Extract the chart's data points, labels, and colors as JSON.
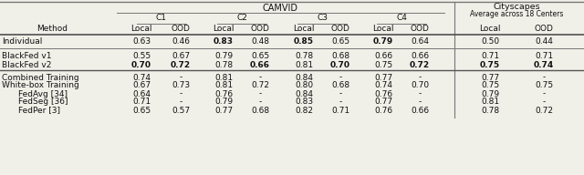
{
  "bg_color": "#f0efe8",
  "line_color": "#777777",
  "text_color": "#111111",
  "fontsize": 6.5,
  "title_camvid": "CAMVID",
  "title_city": "Cityscapes",
  "title_city2": "Average across 18 Centers",
  "col_groups": [
    "C1",
    "C2",
    "C3",
    "C4"
  ],
  "rows": [
    {
      "method": "Individual",
      "values": [
        "0.63",
        "0.46",
        "0.83",
        "0.48",
        "0.85",
        "0.65",
        "0.79",
        "0.64",
        "0.50",
        "0.44"
      ],
      "bold": [
        false,
        false,
        true,
        false,
        true,
        false,
        true,
        false,
        false,
        false
      ],
      "group": "individual"
    },
    {
      "method": "BlackFed v1",
      "values": [
        "0.55",
        "0.67",
        "0.79",
        "0.65",
        "0.78",
        "0.68",
        "0.66",
        "0.66",
        "0.71",
        "0.71"
      ],
      "bold": [
        false,
        false,
        false,
        false,
        false,
        false,
        false,
        false,
        false,
        false
      ],
      "group": "blackfed"
    },
    {
      "method": "BlackFed v2",
      "values": [
        "0.70",
        "0.72",
        "0.78",
        "0.66",
        "0.81",
        "0.70",
        "0.75",
        "0.72",
        "0.75",
        "0.74"
      ],
      "bold": [
        true,
        true,
        false,
        true,
        false,
        true,
        false,
        true,
        true,
        true
      ],
      "group": "blackfed"
    },
    {
      "method": "Combined Training",
      "values": [
        "0.74",
        "-",
        "0.81",
        "-",
        "0.84",
        "-",
        "0.77",
        "-",
        "0.77",
        "-"
      ],
      "bold": [
        false,
        false,
        false,
        false,
        false,
        false,
        false,
        false,
        false,
        false
      ],
      "group": "baseline"
    },
    {
      "method": "White-box Training",
      "values": [
        "0.67",
        "0.73",
        "0.81",
        "0.72",
        "0.80",
        "0.68",
        "0.74",
        "0.70",
        "0.75",
        "0.75"
      ],
      "bold": [
        false,
        false,
        false,
        false,
        false,
        false,
        false,
        false,
        false,
        false
      ],
      "group": "baseline"
    },
    {
      "method": "FedAvg [34]",
      "values": [
        "0.64",
        "-",
        "0.76",
        "-",
        "0.84",
        "-",
        "0.76",
        "-",
        "0.79",
        "-"
      ],
      "bold": [
        false,
        false,
        false,
        false,
        false,
        false,
        false,
        false,
        false,
        false
      ],
      "group": "baseline_indent"
    },
    {
      "method": "FedSeg [36]",
      "values": [
        "0.71",
        "-",
        "0.79",
        "-",
        "0.83",
        "-",
        "0.77",
        "-",
        "0.81",
        "-"
      ],
      "bold": [
        false,
        false,
        false,
        false,
        false,
        false,
        false,
        false,
        false,
        false
      ],
      "group": "baseline_indent"
    },
    {
      "method": "FedPer [3]",
      "values": [
        "0.65",
        "0.57",
        "0.77",
        "0.68",
        "0.82",
        "0.71",
        "0.76",
        "0.66",
        "0.78",
        "0.72"
      ],
      "bold": [
        false,
        false,
        false,
        false,
        false,
        false,
        false,
        false,
        false,
        false
      ],
      "group": "baseline_indent"
    }
  ]
}
